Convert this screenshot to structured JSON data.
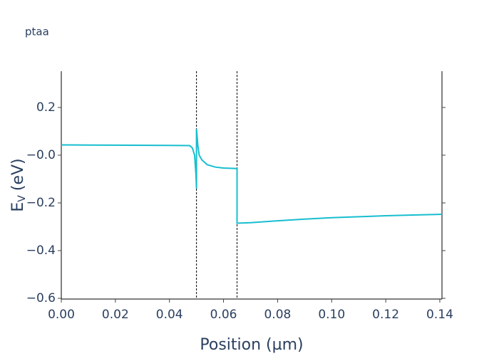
{
  "chart_data": {
    "type": "line",
    "title": "ptaa",
    "x_label": "Position (µm)",
    "y_label": {
      "main": "E",
      "sub": "V",
      "unit": "(eV)"
    },
    "series": [
      {
        "name": "ptaa",
        "color": "#17becf",
        "x": [
          0,
          0.02,
          0.04,
          0.0475,
          0.0485,
          0.0493,
          0.0498,
          0.05,
          0.05,
          0.0505,
          0.051,
          0.052,
          0.054,
          0.057,
          0.06,
          0.065,
          0.065,
          0.07,
          0.08,
          0.09,
          0.1,
          0.11,
          0.12,
          0.13,
          0.1408
        ],
        "values": [
          0.043,
          0.042,
          0.041,
          0.04,
          0.03,
          0.0,
          -0.08,
          -0.14,
          0.11,
          0.04,
          0.0,
          -0.02,
          -0.04,
          -0.05,
          -0.054,
          -0.056,
          -0.285,
          -0.283,
          -0.275,
          -0.268,
          -0.262,
          -0.258,
          -0.254,
          -0.251,
          -0.248
        ]
      }
    ],
    "vlines": [
      0.05,
      0.065
    ],
    "xlim": [
      0,
      0.1408
    ],
    "ylim": [
      -0.603,
      0.352
    ],
    "xticks": [
      {
        "value": 0,
        "label": "0.00"
      },
      {
        "value": 0.02,
        "label": "0.02"
      },
      {
        "value": 0.04,
        "label": "0.04"
      },
      {
        "value": 0.06,
        "label": "0.06"
      },
      {
        "value": 0.08,
        "label": "0.08"
      },
      {
        "value": 0.1,
        "label": "0.10"
      },
      {
        "value": 0.12,
        "label": "0.12"
      },
      {
        "value": 0.14,
        "label": "0.14"
      }
    ],
    "yticks": [
      {
        "value": -0.6,
        "label": "−0.6"
      },
      {
        "value": -0.4,
        "label": "−0.4"
      },
      {
        "value": -0.2,
        "label": "−0.2"
      },
      {
        "value": 0,
        "label": "−0.0"
      },
      0.2
    ],
    "grid": false
  }
}
